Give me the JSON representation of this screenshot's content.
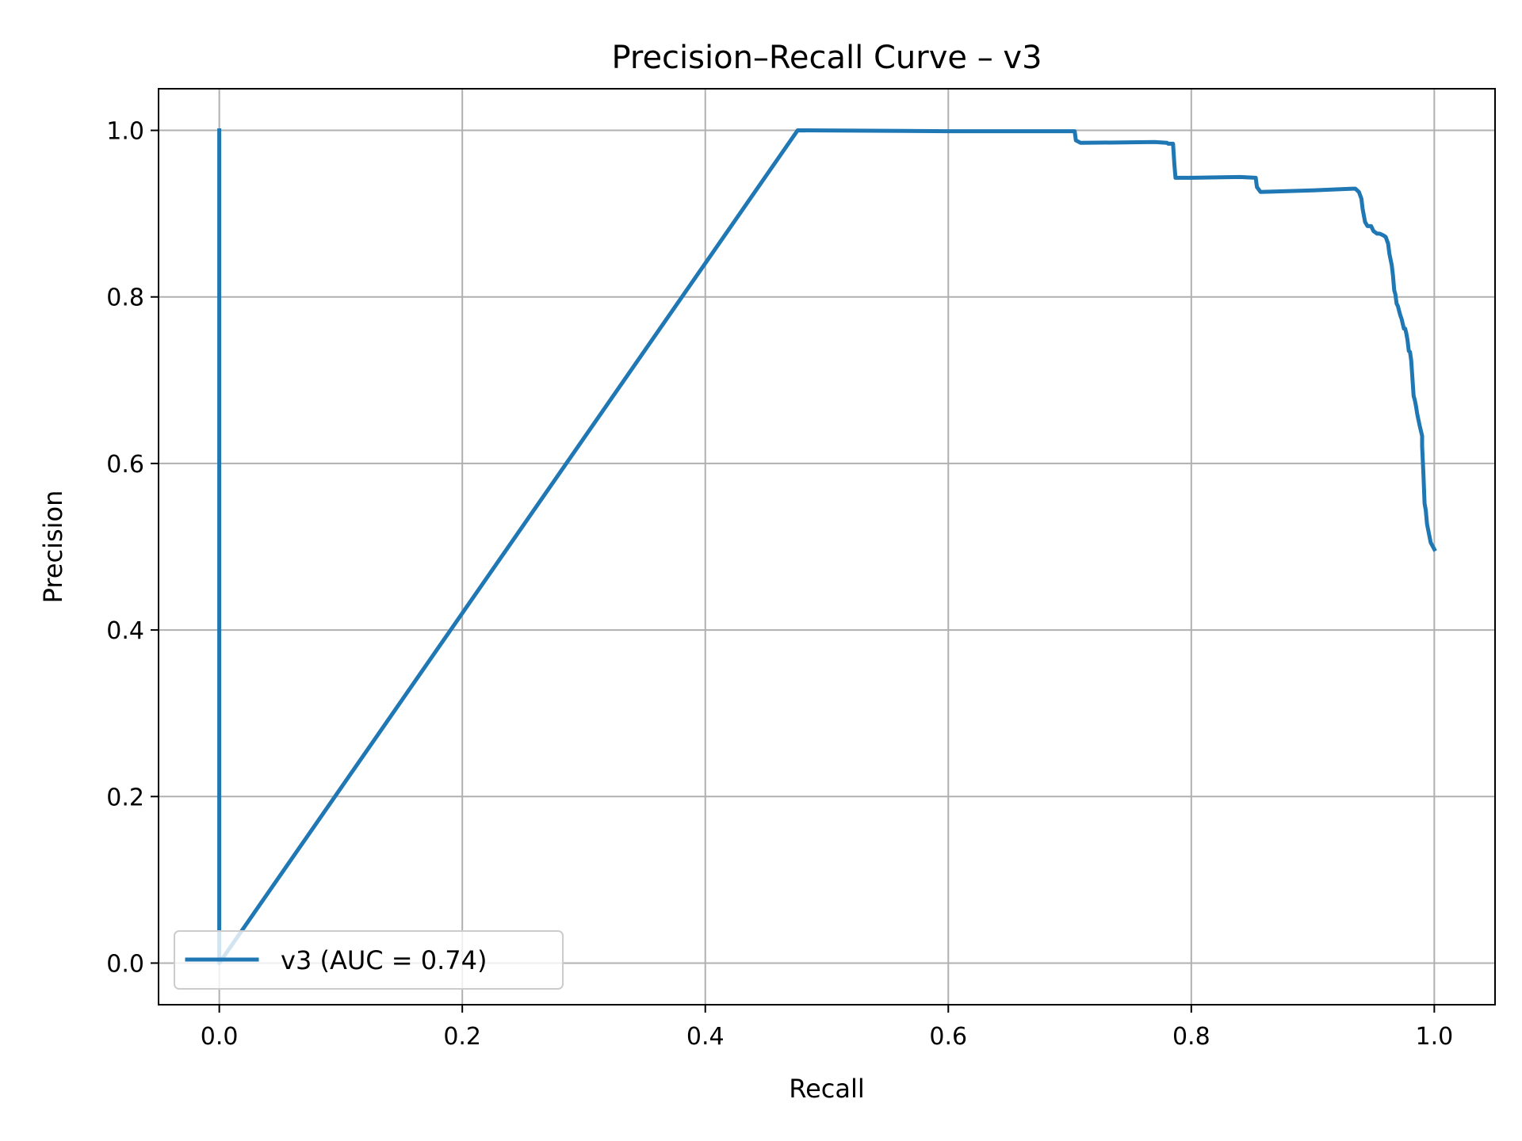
{
  "chart_data": {
    "type": "line",
    "title": "Precision–Recall Curve – v3",
    "xlabel": "Recall",
    "ylabel": "Precision",
    "xlim": [
      -0.05,
      1.05
    ],
    "ylim": [
      -0.05,
      1.05
    ],
    "xticks": [
      0.0,
      0.2,
      0.4,
      0.6,
      0.8,
      1.0
    ],
    "xtick_labels": [
      "0.0",
      "0.2",
      "0.4",
      "0.6",
      "0.8",
      "1.0"
    ],
    "yticks": [
      0.0,
      0.2,
      0.4,
      0.6,
      0.8,
      1.0
    ],
    "ytick_labels": [
      "0.0",
      "0.2",
      "0.4",
      "0.6",
      "0.8",
      "1.0"
    ],
    "grid": true,
    "legend_position": "lower-left",
    "series": [
      {
        "name": "v3 (AUC = 0.74)",
        "color": "#1f77b4",
        "x": [
          0.0,
          0.0,
          0.0,
          0.476,
          0.6,
          0.704,
          0.705,
          0.709,
          0.77,
          0.78,
          0.781,
          0.785,
          0.786,
          0.787,
          0.8,
          0.84,
          0.853,
          0.854,
          0.857,
          0.9,
          0.933,
          0.935,
          0.938,
          0.94,
          0.941,
          0.943,
          0.945,
          0.948,
          0.95,
          0.953,
          0.955,
          0.958,
          0.96,
          0.962,
          0.963,
          0.965,
          0.966,
          0.967,
          0.968,
          0.969,
          0.97,
          0.972,
          0.973,
          0.974,
          0.975,
          0.976,
          0.977,
          0.978,
          0.979,
          0.98,
          0.981,
          0.983,
          0.984,
          0.985,
          0.986,
          0.988,
          0.99,
          0.99,
          0.991,
          0.992,
          0.993,
          0.994,
          0.995,
          0.997,
          1.0
        ],
        "y": [
          1.0,
          0.0,
          0.0,
          1.0,
          0.999,
          0.999,
          0.988,
          0.985,
          0.986,
          0.985,
          0.984,
          0.984,
          0.96,
          0.943,
          0.943,
          0.944,
          0.943,
          0.932,
          0.926,
          0.928,
          0.93,
          0.93,
          0.926,
          0.918,
          0.906,
          0.89,
          0.885,
          0.885,
          0.879,
          0.876,
          0.876,
          0.874,
          0.872,
          0.864,
          0.852,
          0.838,
          0.825,
          0.808,
          0.803,
          0.792,
          0.789,
          0.778,
          0.774,
          0.768,
          0.762,
          0.762,
          0.756,
          0.748,
          0.735,
          0.734,
          0.724,
          0.681,
          0.676,
          0.668,
          0.659,
          0.645,
          0.633,
          0.621,
          0.588,
          0.552,
          0.544,
          0.527,
          0.52,
          0.505,
          0.497
        ]
      }
    ]
  }
}
